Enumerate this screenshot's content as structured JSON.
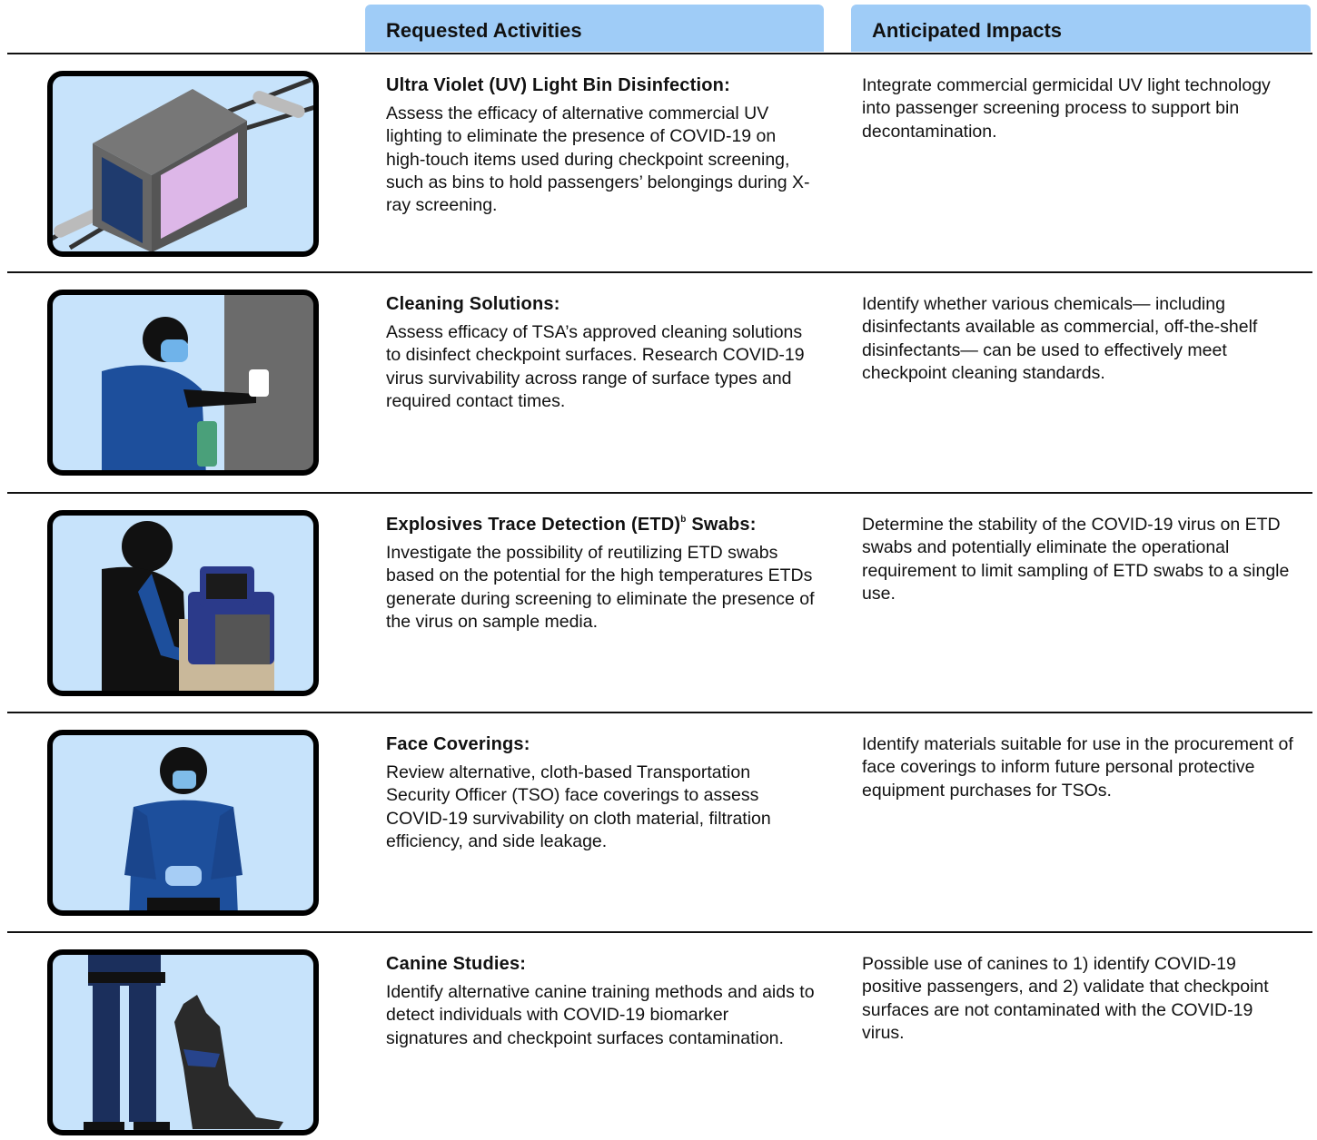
{
  "header": {
    "activities": "Requested Activities",
    "impacts": "Anticipated Impacts"
  },
  "rows": [
    {
      "title": "Ultra Violet (UV) Light Bin Disinfection:",
      "activity": "Assess the efficacy of alternative commercial UV lighting to eliminate the presence of COVID-19 on high-touch items used during checkpoint screening, such as bins to hold passengers’ belongings during X-ray screening.",
      "impact": "Integrate commercial germicidal UV light technology into passenger screening process to support bin decontamination."
    },
    {
      "title": "Cleaning Solutions:",
      "activity": "Assess efficacy of TSA’s approved cleaning solutions to disinfect checkpoint surfaces. Research COVID-19 virus survivability across range of surface types and required contact times.",
      "impact": "Identify whether various chemicals— including disinfectants available as commercial, off-the-shelf disinfectants— can be used to effectively meet checkpoint cleaning standards."
    },
    {
      "title": "Explosives Trace Detection (ETD)",
      "superscript": "b",
      "title_end": "Swabs:",
      "activity": "Investigate the possibility of reutilizing ETD swabs based on the potential for the high temperatures ETDs generate during screening to eliminate the presence of the virus on sample media.",
      "impact": "Determine the stability of the COVID-19 virus on ETD swabs and potentially eliminate the operational requirement to limit sampling of ETD swabs to a single use."
    },
    {
      "title": "Face Coverings:",
      "activity": "Review alternative, cloth-based Transportation Security Officer (TSO) face coverings to assess COVID-19 survivability on cloth material, filtration efficiency, and side leakage.",
      "impact": "Identify materials suitable for use in the procurement of face coverings to inform future personal protective equipment purchases for TSOs."
    },
    {
      "title": "Canine Studies:",
      "activity": "Identify alternative canine training methods and aids to detect individuals with COVID-19 biomarker signatures and checkpoint surfaces contamination.",
      "impact": "Possible use of canines to 1) identify COVID-19 positive passengers, and 2) validate that checkpoint surfaces are not contaminated with the COVID-19 virus."
    }
  ]
}
